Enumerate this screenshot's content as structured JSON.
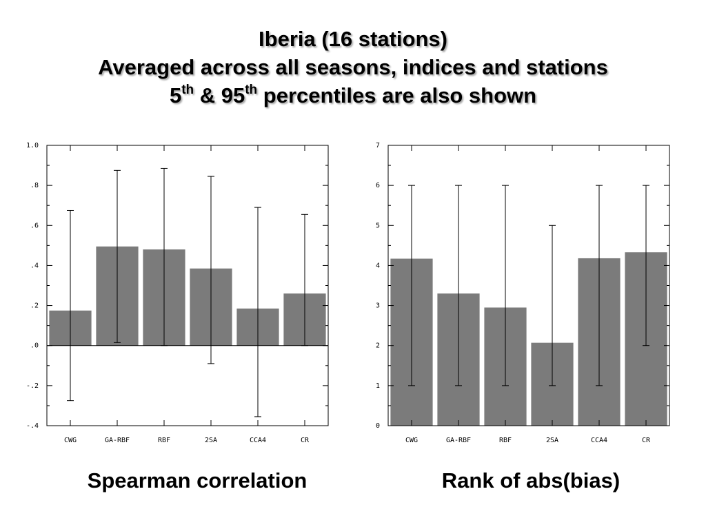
{
  "title": {
    "line1": "Iberia (16 stations)",
    "line2": "Averaged across all seasons, indices and stations",
    "line3_a": "5",
    "line3_sup1": "th",
    "line3_b": " & 95",
    "line3_sup2": "th",
    "line3_c": " percentiles are also shown"
  },
  "chart_data": [
    {
      "type": "bar",
      "caption": "Spearman correlation",
      "categories": [
        "CWG",
        "GA-RBF",
        "RBF",
        "2SA",
        "CCA4",
        "CR"
      ],
      "values": [
        0.175,
        0.495,
        0.48,
        0.385,
        0.185,
        0.26
      ],
      "p5": [
        -0.275,
        0.015,
        0.0,
        -0.09,
        -0.355,
        0.0
      ],
      "p95": [
        0.675,
        0.875,
        0.885,
        0.845,
        0.69,
        0.655
      ],
      "ylim": [
        -0.4,
        1.0
      ],
      "yticks": [
        -0.4,
        -0.2,
        0.0,
        0.2,
        0.4,
        0.6,
        0.8,
        1.0
      ],
      "ytick_labels": [
        "-.4",
        "-.2",
        ".0",
        ".2",
        ".4",
        ".6",
        ".8",
        "1.0"
      ],
      "zero_line": true,
      "bar_color": "#7b7b7b"
    },
    {
      "type": "bar",
      "caption": "Rank of abs(bias)",
      "categories": [
        "CWG",
        "GA-RBF",
        "RBF",
        "2SA",
        "CCA4",
        "CR"
      ],
      "values": [
        4.17,
        3.3,
        2.95,
        2.07,
        4.18,
        4.33
      ],
      "p5": [
        1,
        1,
        1,
        1,
        1,
        2
      ],
      "p95": [
        6,
        6,
        6,
        5,
        6,
        6
      ],
      "ylim": [
        0,
        7
      ],
      "yticks": [
        0,
        1,
        2,
        3,
        4,
        5,
        6,
        7
      ],
      "ytick_labels": [
        "0",
        "1",
        "2",
        "3",
        "4",
        "5",
        "6",
        "7"
      ],
      "zero_line": false,
      "bar_color": "#7b7b7b"
    }
  ]
}
